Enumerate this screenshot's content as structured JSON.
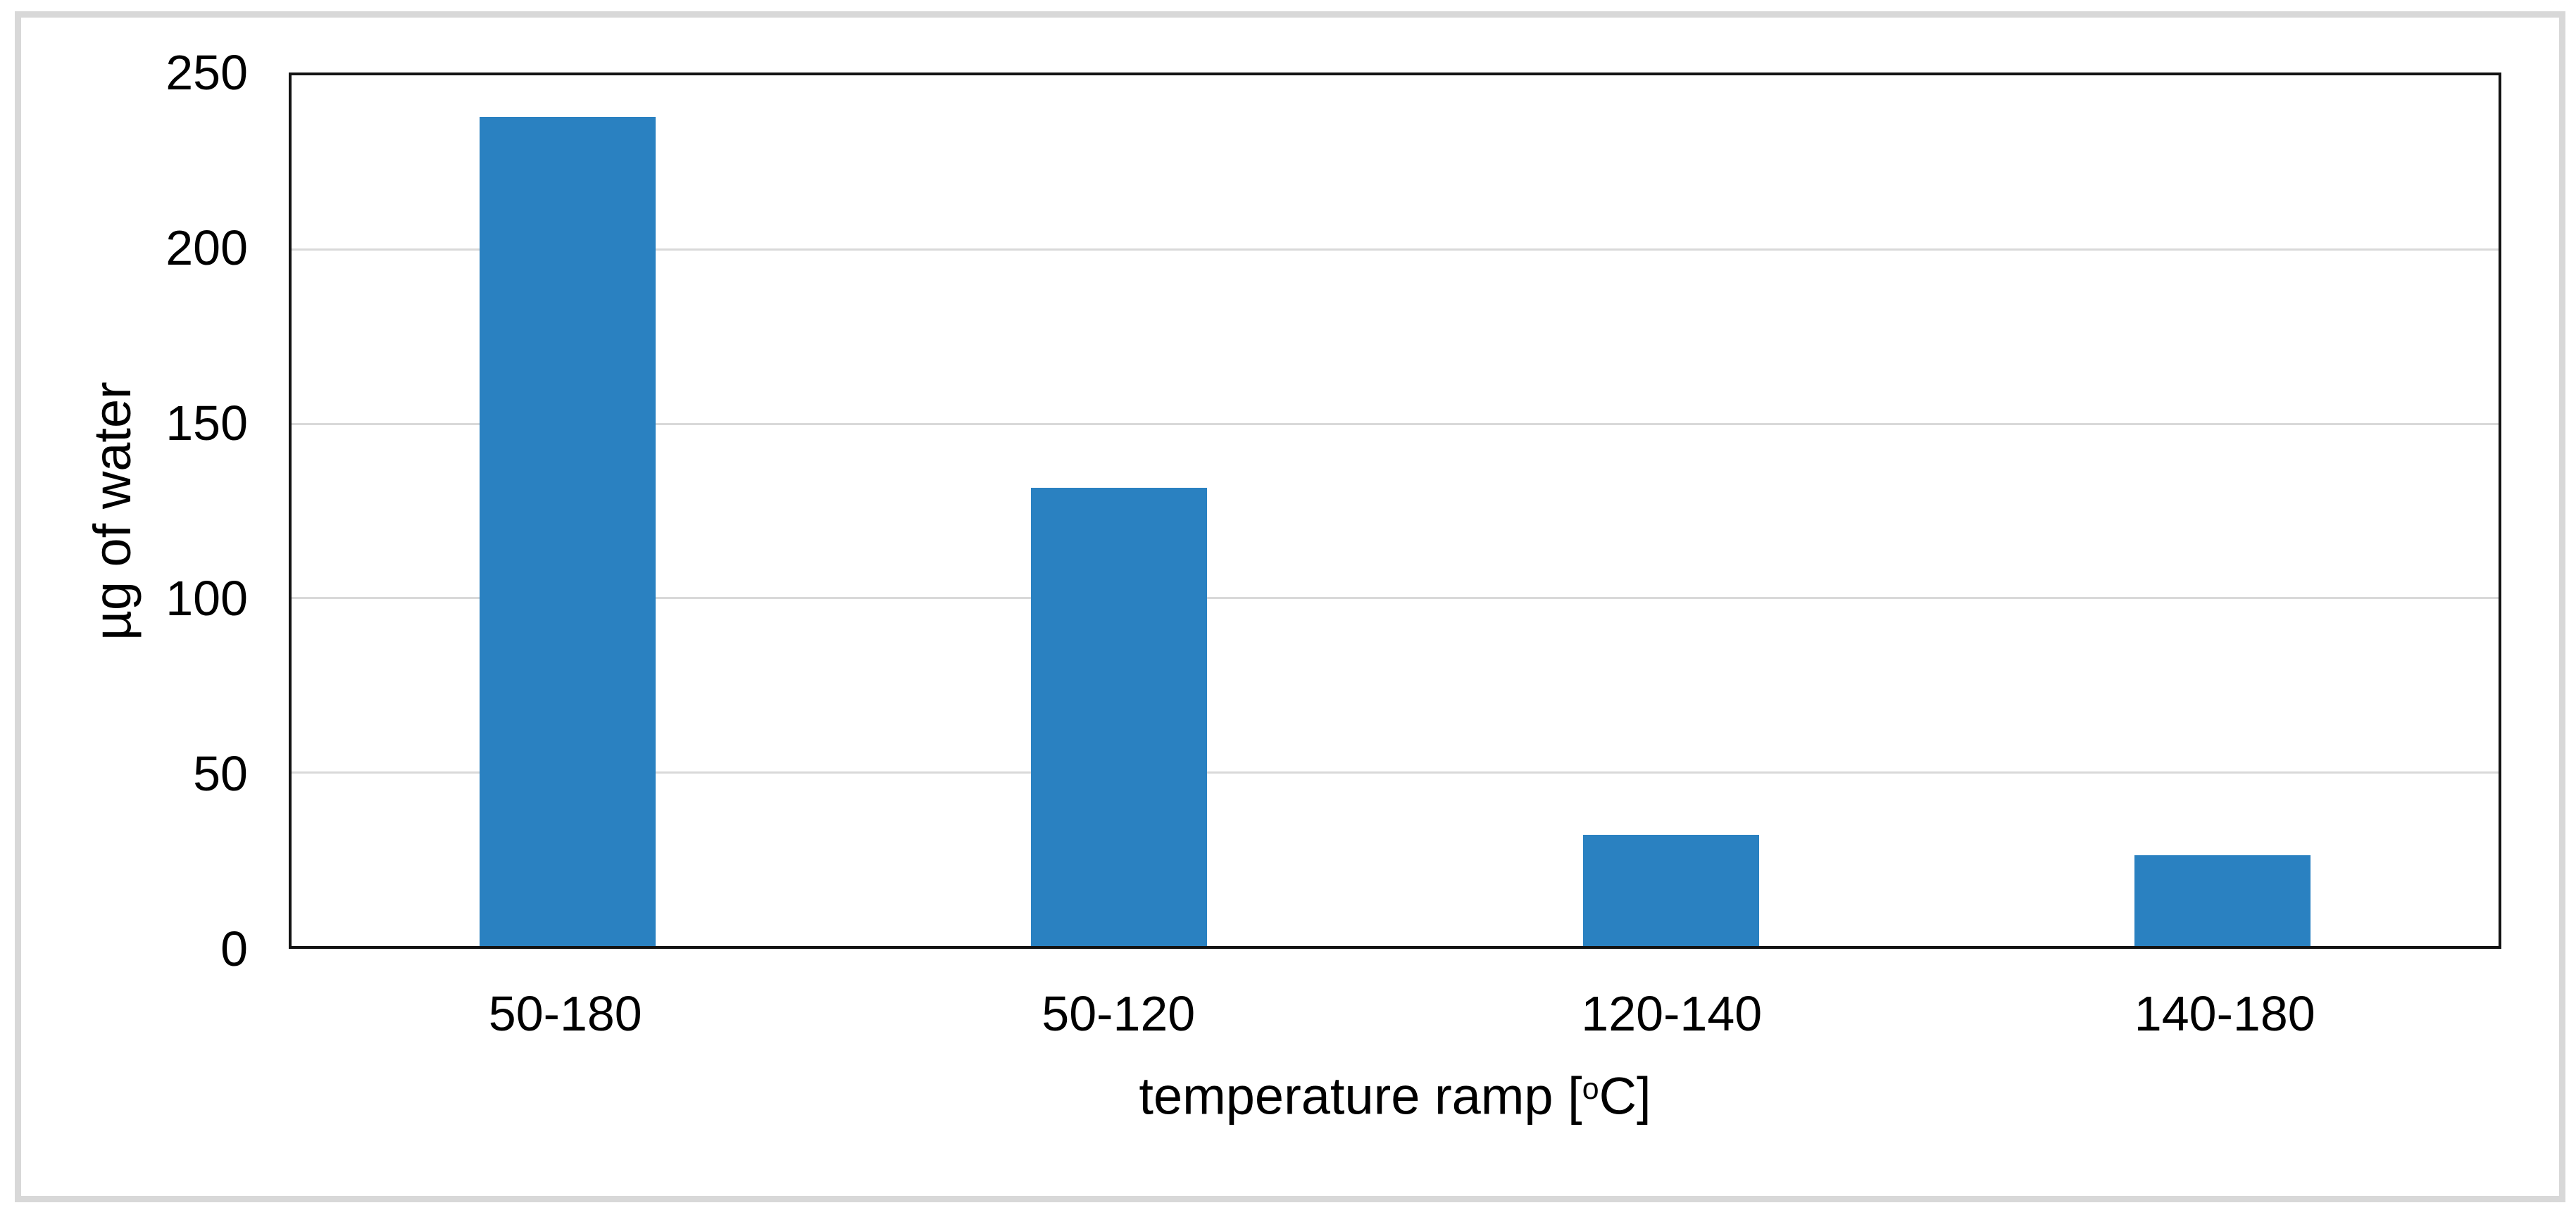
{
  "figure": {
    "background_color": "#ffffff",
    "frame_color": "#d8d8d8"
  },
  "chart_data": {
    "type": "bar",
    "categories": [
      "50-180",
      "50-120",
      "120-140",
      "140-180"
    ],
    "values": [
      238,
      131.5,
      32,
      26
    ],
    "title": "",
    "xlabel": "temperature ramp [°C]",
    "xlabel_parts": {
      "prefix": "temperature ramp [",
      "sup": "o",
      "suffix": "C]"
    },
    "ylabel": "µg of water",
    "ylim": [
      0,
      250
    ],
    "yticks": [
      0,
      50,
      100,
      150,
      200,
      250
    ],
    "grid": "horizontal",
    "legend": "none",
    "bar_color": "#2a81c1",
    "gridline_color": "#d9d9d9",
    "axis_frame_color": "#131313",
    "text_color": "#000000"
  }
}
